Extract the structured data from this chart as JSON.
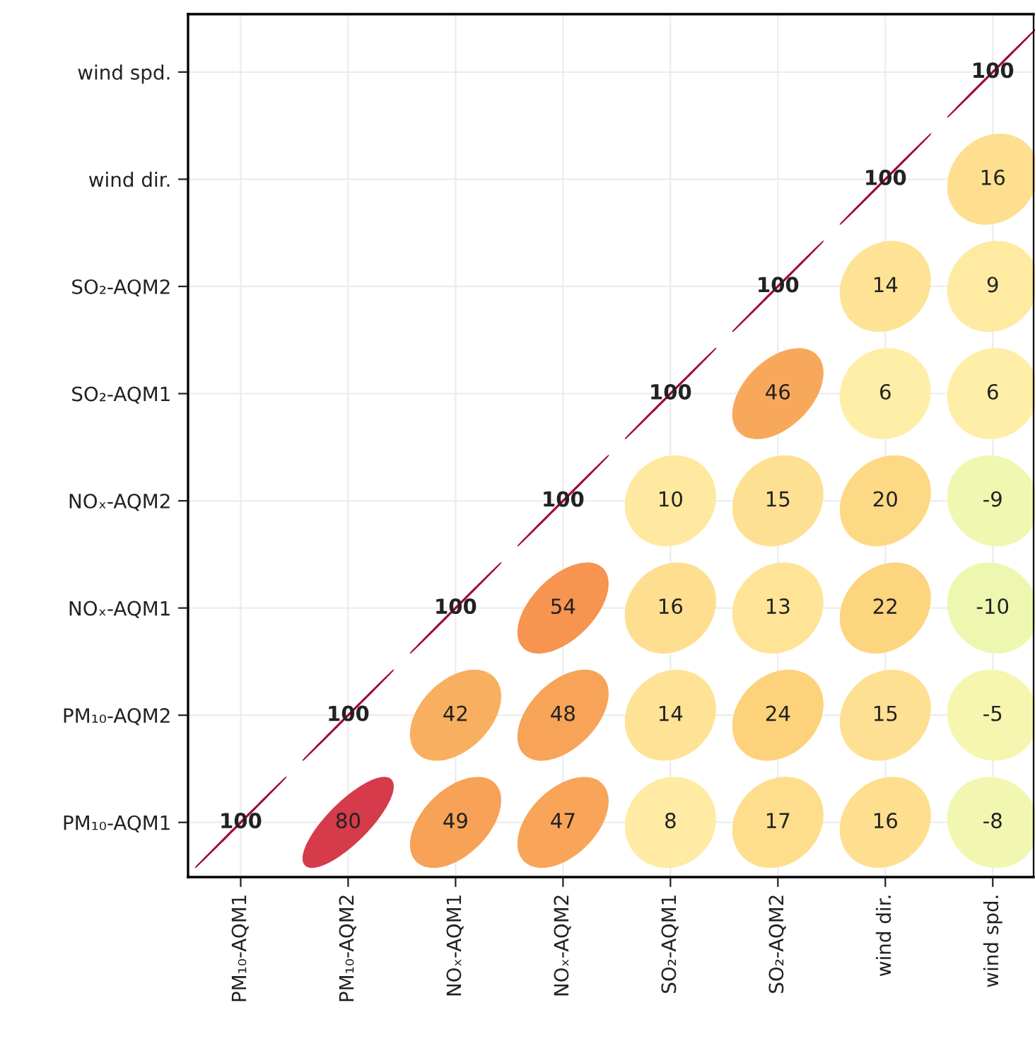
{
  "chart_data": {
    "type": "heatmap",
    "data_labels": true,
    "categories": [
      "PM₁₀-AQM1",
      "PM₁₀-AQM2",
      "NOₓ-AQM1",
      "NOₓ-AQM2",
      "SO₂-AQM1",
      "SO₂-AQM2",
      "wind dir.",
      "wind spd."
    ],
    "y_categories": [
      "wind spd.",
      "wind dir.",
      "SO₂-AQM2",
      "SO₂-AQM1",
      "NOₓ-AQM2",
      "NOₓ-AQM1",
      "PM₁₀-AQM2",
      "PM₁₀-AQM1"
    ],
    "cells": [
      [
        null,
        null,
        null,
        null,
        null,
        null,
        null,
        100
      ],
      [
        null,
        null,
        null,
        null,
        null,
        null,
        100,
        16
      ],
      [
        null,
        null,
        null,
        null,
        null,
        100,
        14,
        9
      ],
      [
        null,
        null,
        null,
        null,
        100,
        46,
        6,
        6
      ],
      [
        null,
        null,
        null,
        100,
        10,
        15,
        20,
        -9
      ],
      [
        null,
        null,
        100,
        54,
        16,
        13,
        22,
        -10
      ],
      [
        null,
        100,
        42,
        48,
        14,
        24,
        15,
        -5
      ],
      [
        100,
        80,
        49,
        47,
        8,
        17,
        16,
        -8
      ]
    ],
    "grid": true
  }
}
